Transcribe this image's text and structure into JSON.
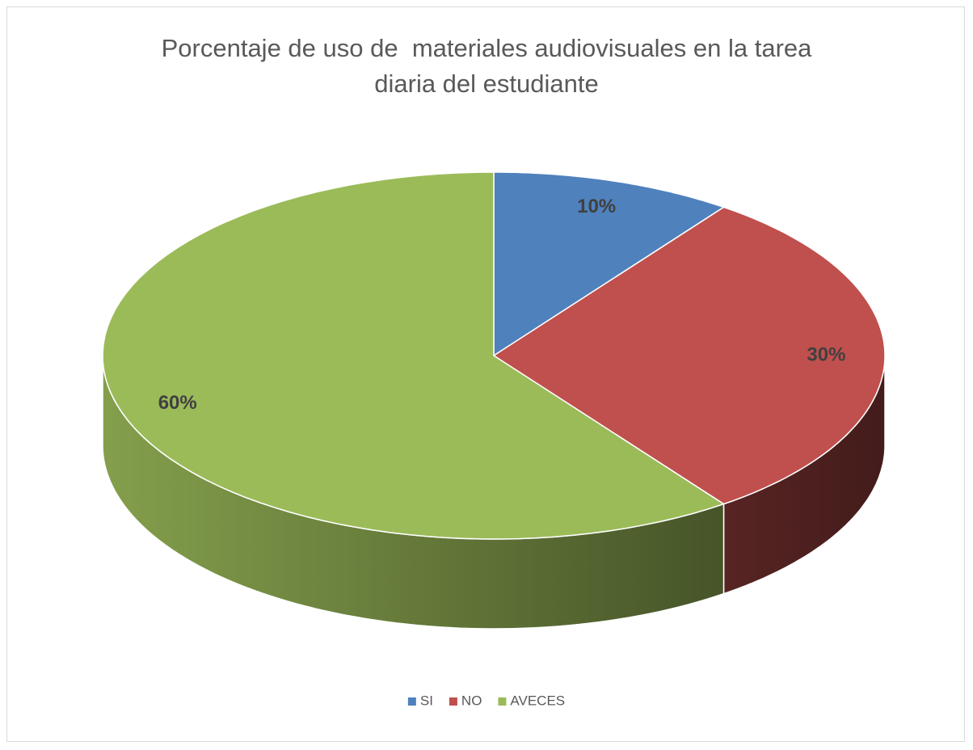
{
  "chart_data": {
    "type": "pie",
    "title": "Porcentaje de uso de  materiales audiovisuales en la tarea diaria del estudiante",
    "categories": [
      "SI",
      "NO",
      "AVECES"
    ],
    "values": [
      10,
      30,
      60
    ],
    "value_labels": [
      "10%",
      "30%",
      "60%"
    ],
    "colors": [
      "#4f81bd",
      "#c0504d",
      "#9bbb59"
    ],
    "legend": "bottom"
  }
}
